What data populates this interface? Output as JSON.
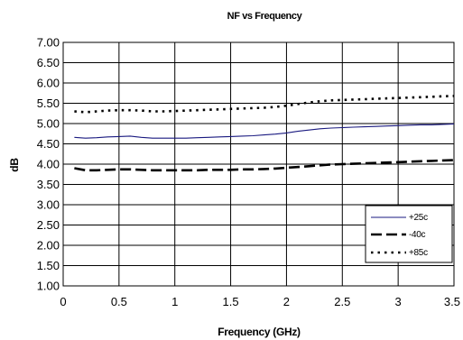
{
  "chart_data": {
    "type": "line",
    "title": "NF vs Frequency",
    "xlabel": "Frequency (GHz)",
    "ylabel": "dB",
    "xlim": [
      0,
      3.5
    ],
    "ylim": [
      1.0,
      7.0
    ],
    "x_ticks": [
      "0",
      "0.5",
      "1",
      "1.5",
      "2",
      "2.5",
      "3",
      "3.5"
    ],
    "y_ticks": [
      "1.00",
      "1.50",
      "2.00",
      "2.50",
      "3.00",
      "3.50",
      "4.00",
      "4.50",
      "5.00",
      "5.50",
      "6.00",
      "6.50",
      "7.00"
    ],
    "x_tick_values": [
      0,
      0.5,
      1,
      1.5,
      2,
      2.5,
      3,
      3.5
    ],
    "y_tick_values": [
      1.0,
      1.5,
      2.0,
      2.5,
      3.0,
      3.5,
      4.0,
      4.5,
      5.0,
      5.5,
      6.0,
      6.5,
      7.0
    ],
    "grid": true,
    "legend_position": "bottom-right",
    "x": [
      0.1,
      0.2,
      0.3,
      0.4,
      0.5,
      0.6,
      0.7,
      0.8,
      0.9,
      1.0,
      1.1,
      1.2,
      1.3,
      1.4,
      1.5,
      1.6,
      1.7,
      1.8,
      1.9,
      2.0,
      2.1,
      2.2,
      2.3,
      2.4,
      2.5,
      2.6,
      2.7,
      2.8,
      2.9,
      3.0,
      3.1,
      3.2,
      3.3,
      3.4,
      3.5
    ],
    "series": [
      {
        "name": "+25c",
        "color": "#1a1a80",
        "style": "solid",
        "values": [
          4.66,
          4.64,
          4.65,
          4.67,
          4.68,
          4.69,
          4.66,
          4.64,
          4.64,
          4.64,
          4.64,
          4.65,
          4.66,
          4.67,
          4.68,
          4.69,
          4.7,
          4.72,
          4.74,
          4.77,
          4.81,
          4.84,
          4.87,
          4.89,
          4.9,
          4.91,
          4.92,
          4.93,
          4.94,
          4.95,
          4.96,
          4.97,
          4.97,
          4.98,
          4.99
        ]
      },
      {
        "name": "-40c",
        "color": "#000000",
        "style": "dashed",
        "values": [
          3.9,
          3.85,
          3.85,
          3.86,
          3.87,
          3.87,
          3.86,
          3.85,
          3.85,
          3.85,
          3.85,
          3.85,
          3.86,
          3.86,
          3.86,
          3.87,
          3.87,
          3.88,
          3.89,
          3.91,
          3.93,
          3.95,
          3.97,
          3.99,
          4.0,
          4.01,
          4.02,
          4.03,
          4.04,
          4.05,
          4.06,
          4.07,
          4.08,
          4.09,
          4.1
        ]
      },
      {
        "name": "+85c",
        "color": "#000000",
        "style": "dotted",
        "values": [
          5.3,
          5.28,
          5.3,
          5.32,
          5.33,
          5.33,
          5.32,
          5.3,
          5.3,
          5.31,
          5.32,
          5.33,
          5.34,
          5.35,
          5.36,
          5.37,
          5.38,
          5.39,
          5.41,
          5.44,
          5.48,
          5.52,
          5.55,
          5.57,
          5.58,
          5.59,
          5.6,
          5.61,
          5.62,
          5.63,
          5.64,
          5.65,
          5.66,
          5.67,
          5.68
        ]
      }
    ]
  }
}
